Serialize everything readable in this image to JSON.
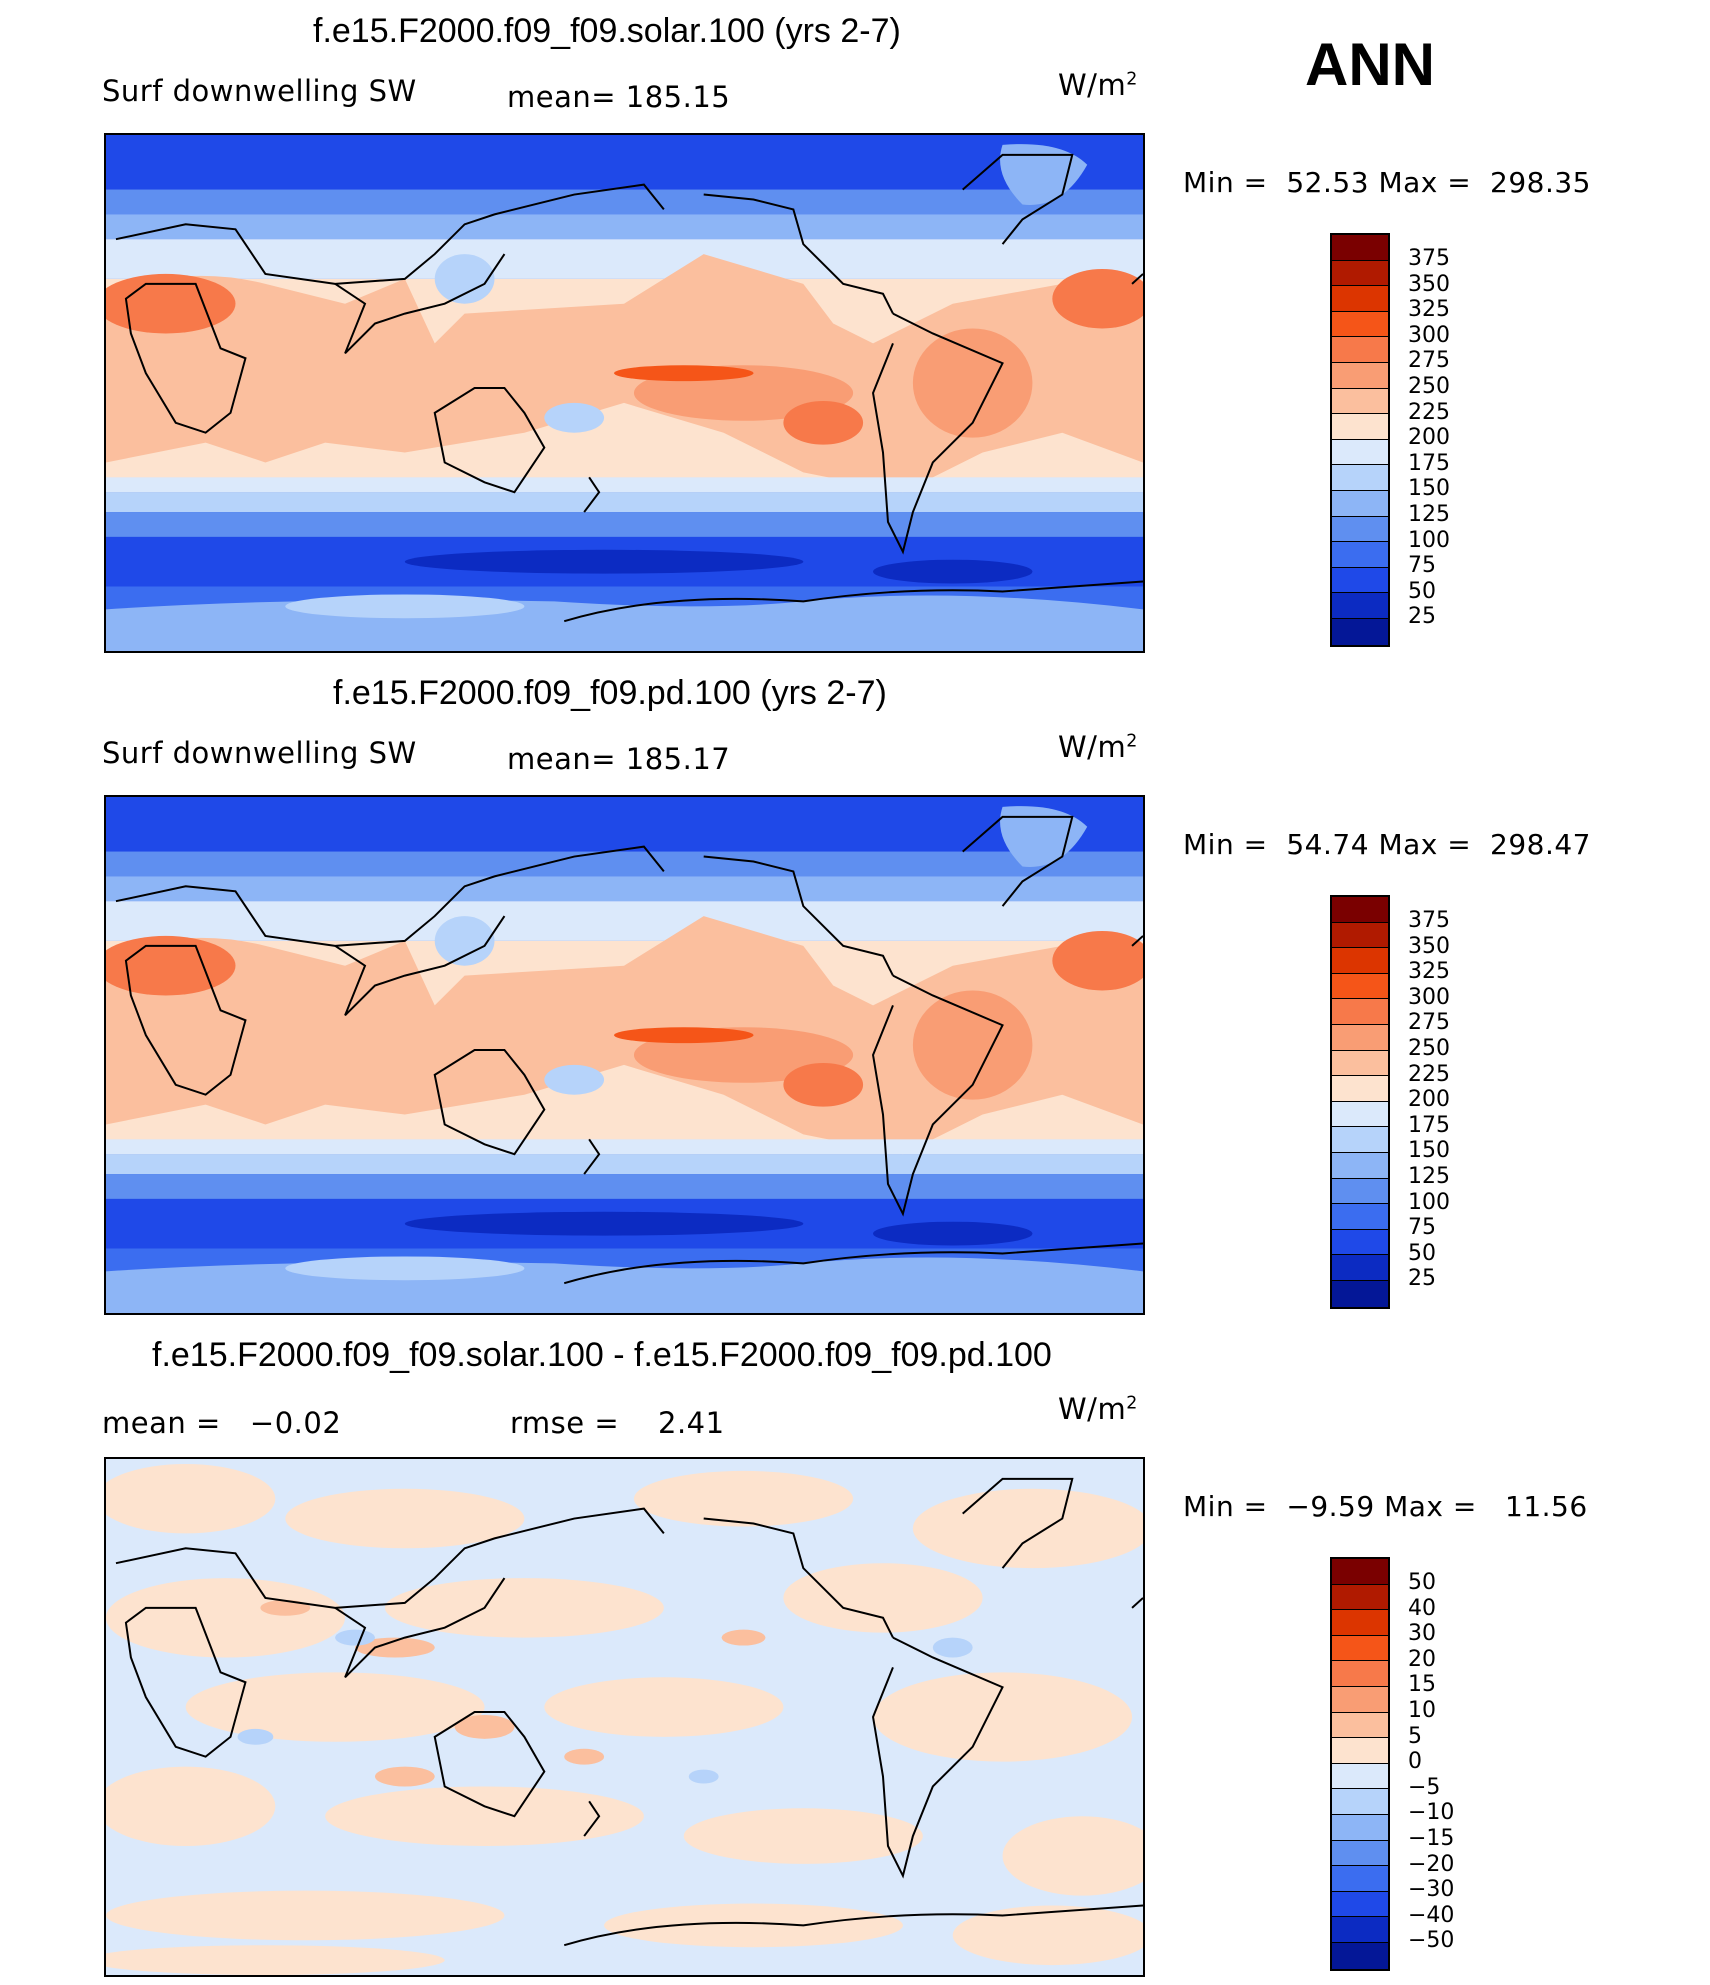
{
  "season": "ANN",
  "unit_base": "W/m",
  "unit_exp": "2",
  "panels": [
    {
      "title": "f.e15.F2000.f09_f09.solar.100 (yrs 2-7)",
      "left_label": "Surf downwelling SW",
      "stat_label": "mean=",
      "stat_value": "185.15",
      "min_label": "Min =",
      "min_value": "52.53",
      "max_label": "Max =",
      "max_value": "298.35"
    },
    {
      "title": "f.e15.F2000.f09_f09.pd.100 (yrs 2-7)",
      "left_label": "Surf downwelling SW",
      "stat_label": "mean=",
      "stat_value": "185.17",
      "min_label": "Min =",
      "min_value": "54.74",
      "max_label": "Max =",
      "max_value": "298.47"
    },
    {
      "title": "f.e15.F2000.f09_f09.solar.100 - f.e15.F2000.f09_f09.pd.100",
      "left_label": "mean =",
      "left_value": "−0.02",
      "stat_label": "rmse =",
      "stat_value": "2.41",
      "min_label": "Min =",
      "min_value": "−9.59",
      "max_label": "Max =",
      "max_value": "11.56"
    }
  ],
  "colorbar_abs": {
    "labels": [
      "375",
      "350",
      "325",
      "300",
      "275",
      "250",
      "225",
      "200",
      "175",
      "150",
      "125",
      "100",
      "75",
      "50",
      "25"
    ],
    "colors": [
      "#7a0000",
      "#b01a00",
      "#dc3500",
      "#f55518",
      "#f7794a",
      "#f99d74",
      "#fbbf9e",
      "#fde3cf",
      "#dbe9fb",
      "#b6d3fa",
      "#8db5f6",
      "#5f8ff0",
      "#3b6df0",
      "#1f49e8",
      "#0c2bc2",
      "#041797"
    ]
  },
  "colorbar_diff": {
    "labels": [
      "50",
      "40",
      "30",
      "20",
      "15",
      "10",
      "5",
      "0",
      "−5",
      "−10",
      "−15",
      "−20",
      "−30",
      "−40",
      "−50"
    ],
    "colors": [
      "#7a0000",
      "#b01a00",
      "#dc3500",
      "#f55518",
      "#f7794a",
      "#f99d74",
      "#fbbf9e",
      "#fde3cf",
      "#dbe9fb",
      "#b6d3fa",
      "#8db5f6",
      "#5f8ff0",
      "#3b6df0",
      "#1f49e8",
      "#0c2bc2",
      "#041797"
    ]
  }
}
